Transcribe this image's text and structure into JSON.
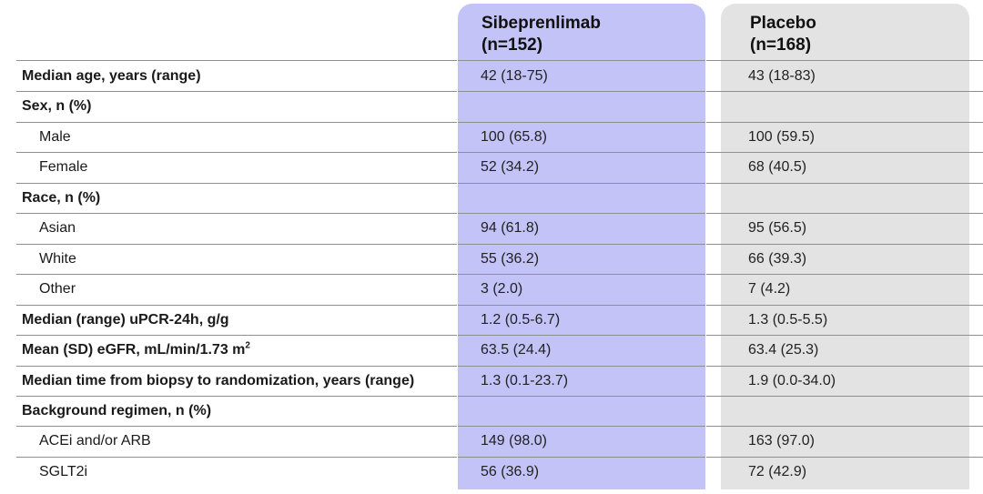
{
  "colors": {
    "sibeprenlimab_bg": "#c3c3f7",
    "placebo_bg": "#e3e3e3",
    "rule": "#8f8f8f"
  },
  "header": {
    "col1": {
      "name": "Sibeprenlimab",
      "n": "(n=152)"
    },
    "col2": {
      "name": "Placebo",
      "n": "(n=168)"
    }
  },
  "rows": [
    {
      "label": "Median age, years (range)",
      "bold": true,
      "a": "42 (18-75)",
      "b": "43 (18-83)"
    },
    {
      "label": "Sex, n (%)",
      "bold": true,
      "a": "",
      "b": ""
    },
    {
      "label": "Male",
      "bold": false,
      "a": "100 (65.8)",
      "b": "100 (59.5)"
    },
    {
      "label": "Female",
      "bold": false,
      "a": "52 (34.2)",
      "b": "68 (40.5)"
    },
    {
      "label": "Race, n (%)",
      "bold": true,
      "a": "",
      "b": ""
    },
    {
      "label": "Asian",
      "bold": false,
      "a": "94 (61.8)",
      "b": "95 (56.5)"
    },
    {
      "label": "White",
      "bold": false,
      "a": "55 (36.2)",
      "b": "66 (39.3)"
    },
    {
      "label": "Other",
      "bold": false,
      "a": "3 (2.0)",
      "b": "7 (4.2)"
    },
    {
      "label": "Median (range) uPCR-24h, g/g",
      "bold": true,
      "a": "1.2 (0.5-6.7)",
      "b": "1.3 (0.5-5.5)"
    },
    {
      "label": "Mean (SD) eGFR, mL/min/1.73 m",
      "sup": "2",
      "bold": true,
      "a": "63.5 (24.4)",
      "b": "63.4 (25.3)"
    },
    {
      "label": "Median time from biopsy to randomization, years (range)",
      "bold": true,
      "a": "1.3 (0.1-23.7)",
      "b": "1.9 (0.0-34.0)"
    },
    {
      "label": "Background regimen, n (%)",
      "bold": true,
      "a": "",
      "b": ""
    },
    {
      "label": "ACEi and/or ARB",
      "bold": false,
      "a": "149 (98.0)",
      "b": "163 (97.0)"
    },
    {
      "label": "SGLT2i",
      "bold": false,
      "a": "56 (36.9)",
      "b": "72 (42.9)"
    }
  ]
}
